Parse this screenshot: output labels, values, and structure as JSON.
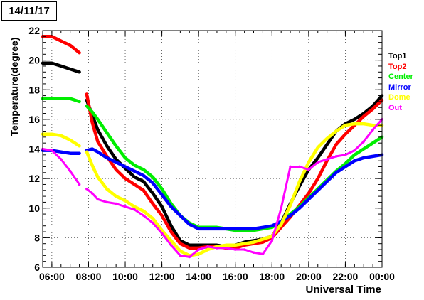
{
  "chart_data": {
    "type": "scatter",
    "title": "14/11/17",
    "xlabel": "Universal Time",
    "ylabel": "Temperature(degree)",
    "xlim": [
      5.5,
      24
    ],
    "ylim": [
      6,
      22
    ],
    "xticks": [
      "06:00",
      "08:00",
      "10:00",
      "12:00",
      "14:00",
      "16:00",
      "18:00",
      "20:00",
      "22:00",
      "00:00"
    ],
    "yticks": [
      "6",
      "8",
      "10",
      "12",
      "14",
      "16",
      "18",
      "20",
      "22"
    ],
    "grid": true,
    "legend_position": "right",
    "series": [
      {
        "name": "Top1",
        "color": "#000000",
        "x": [
          5.5,
          6,
          6.5,
          7,
          7.5,
          7.9,
          8.2,
          8.5,
          9,
          9.5,
          10,
          10.5,
          11,
          11.5,
          12,
          12.5,
          13,
          13.5,
          14,
          14.5,
          15,
          15.5,
          16,
          16.5,
          17,
          17.5,
          18,
          18.5,
          19,
          19.5,
          20,
          20.5,
          21,
          21.5,
          22,
          22.5,
          23,
          23.5,
          24
        ],
        "y": [
          19.8,
          19.8,
          19.6,
          19.4,
          19.2,
          17.3,
          16.3,
          15.3,
          14.2,
          13.3,
          12.7,
          12.1,
          11.8,
          11.0,
          10.1,
          8.8,
          7.8,
          7.5,
          7.5,
          7.5,
          7.5,
          7.4,
          7.5,
          7.7,
          7.8,
          7.9,
          8.1,
          9.0,
          10.3,
          11.5,
          12.6,
          13.4,
          14.3,
          15.2,
          15.7,
          16.0,
          16.4,
          16.9,
          17.6
        ]
      },
      {
        "name": "Top2",
        "color": "#ff0000",
        "x": [
          5.5,
          6,
          6.5,
          7,
          7.5,
          7.9,
          8.2,
          8.5,
          9,
          9.5,
          10,
          10.5,
          11,
          11.5,
          12,
          12.5,
          13,
          13.5,
          14,
          14.5,
          15,
          15.5,
          16,
          16.5,
          17,
          17.5,
          18,
          18.5,
          19,
          19.5,
          20,
          20.5,
          21,
          21.5,
          22,
          22.5,
          23,
          23.5,
          24
        ],
        "y": [
          21.6,
          21.6,
          21.3,
          21.0,
          20.5,
          17.7,
          15.8,
          14.5,
          13.5,
          12.6,
          12.0,
          11.6,
          11.2,
          10.3,
          9.5,
          8.4,
          7.6,
          7.3,
          7.3,
          7.4,
          7.4,
          7.3,
          7.3,
          7.5,
          7.6,
          7.7,
          8.0,
          8.7,
          9.4,
          10.2,
          11.0,
          12.0,
          13.2,
          14.3,
          15.0,
          15.6,
          16.2,
          16.7,
          17.3
        ]
      },
      {
        "name": "Center",
        "color": "#00ee00",
        "x": [
          5.5,
          6,
          6.5,
          7,
          7.5,
          7.9,
          8.2,
          8.5,
          9,
          9.5,
          10,
          10.5,
          11,
          11.5,
          12,
          12.5,
          13,
          13.5,
          14,
          14.5,
          15,
          15.5,
          16,
          16.5,
          17,
          17.5,
          18,
          18.5,
          19,
          19.5,
          20,
          20.5,
          21,
          21.5,
          22,
          22.5,
          23,
          23.5,
          24
        ],
        "y": [
          17.4,
          17.4,
          17.4,
          17.4,
          17.2,
          16.9,
          16.5,
          16.0,
          15.1,
          14.2,
          13.4,
          12.9,
          12.6,
          12.1,
          11.3,
          10.3,
          9.5,
          9.0,
          8.7,
          8.7,
          8.7,
          8.6,
          8.5,
          8.5,
          8.5,
          8.6,
          8.7,
          9.1,
          9.6,
          10.1,
          10.7,
          11.3,
          11.9,
          12.5,
          13.0,
          13.6,
          14.0,
          14.4,
          14.8
        ]
      },
      {
        "name": "Mirror",
        "color": "#0000ff",
        "x": [
          5.5,
          6,
          6.5,
          7,
          7.5,
          7.9,
          8.2,
          8.5,
          9,
          9.5,
          10,
          10.5,
          11,
          11.5,
          12,
          12.5,
          13,
          13.5,
          14,
          14.5,
          15,
          15.5,
          16,
          16.5,
          17,
          17.5,
          18,
          18.5,
          19,
          19.5,
          20,
          20.5,
          21,
          21.5,
          22,
          22.5,
          23,
          23.5,
          24
        ],
        "y": [
          13.9,
          13.9,
          13.8,
          13.7,
          13.7,
          13.9,
          14.0,
          13.8,
          13.4,
          13.1,
          12.8,
          12.5,
          12.2,
          11.7,
          10.9,
          10.1,
          9.5,
          8.9,
          8.6,
          8.6,
          8.6,
          8.6,
          8.6,
          8.6,
          8.6,
          8.7,
          8.8,
          9.1,
          9.5,
          10.0,
          10.6,
          11.2,
          11.8,
          12.4,
          12.8,
          13.2,
          13.4,
          13.5,
          13.6
        ]
      },
      {
        "name": "Dome",
        "color": "#ffff00",
        "x": [
          5.5,
          6,
          6.5,
          7,
          7.5,
          7.9,
          8.2,
          8.5,
          9,
          9.5,
          10,
          10.5,
          11,
          11.5,
          12,
          12.5,
          13,
          13.5,
          14,
          14.5,
          15,
          15.5,
          16,
          16.5,
          17,
          17.5,
          18,
          18.5,
          19,
          19.5,
          20,
          20.5,
          21,
          21.5,
          22,
          22.5,
          23,
          23.5,
          24
        ],
        "y": [
          15.0,
          15.0,
          14.9,
          14.6,
          14.2,
          13.8,
          12.9,
          12.1,
          11.3,
          10.8,
          10.5,
          10.1,
          9.8,
          9.3,
          8.5,
          7.8,
          7.1,
          6.8,
          6.9,
          7.2,
          7.4,
          7.5,
          7.5,
          7.6,
          7.7,
          7.9,
          8.1,
          8.9,
          10.2,
          11.8,
          13.1,
          14.1,
          14.7,
          15.2,
          15.6,
          15.7,
          15.7,
          15.6,
          15.6
        ]
      },
      {
        "name": "Out",
        "color": "#ff00ff",
        "x": [
          5.5,
          6,
          6.5,
          7,
          7.5,
          7.9,
          8.2,
          8.5,
          9,
          9.5,
          10,
          10.5,
          11,
          11.5,
          12,
          12.5,
          13,
          13.5,
          14,
          14.5,
          15,
          15.5,
          16,
          16.5,
          17,
          17.5,
          18,
          18.5,
          19,
          19.5,
          20,
          20.5,
          21,
          21.5,
          22,
          22.5,
          23,
          23.5,
          24
        ],
        "y": [
          14.0,
          13.9,
          13.3,
          12.5,
          11.6,
          11.3,
          11.0,
          10.6,
          10.4,
          10.3,
          10.1,
          9.9,
          9.5,
          9.0,
          8.3,
          7.5,
          6.8,
          6.7,
          7.2,
          7.4,
          7.3,
          7.3,
          7.2,
          7.2,
          7.0,
          6.9,
          7.8,
          10.0,
          12.8,
          12.8,
          12.6,
          13.1,
          13.3,
          13.5,
          13.6,
          13.9,
          14.5,
          15.3,
          16.0
        ]
      }
    ]
  }
}
